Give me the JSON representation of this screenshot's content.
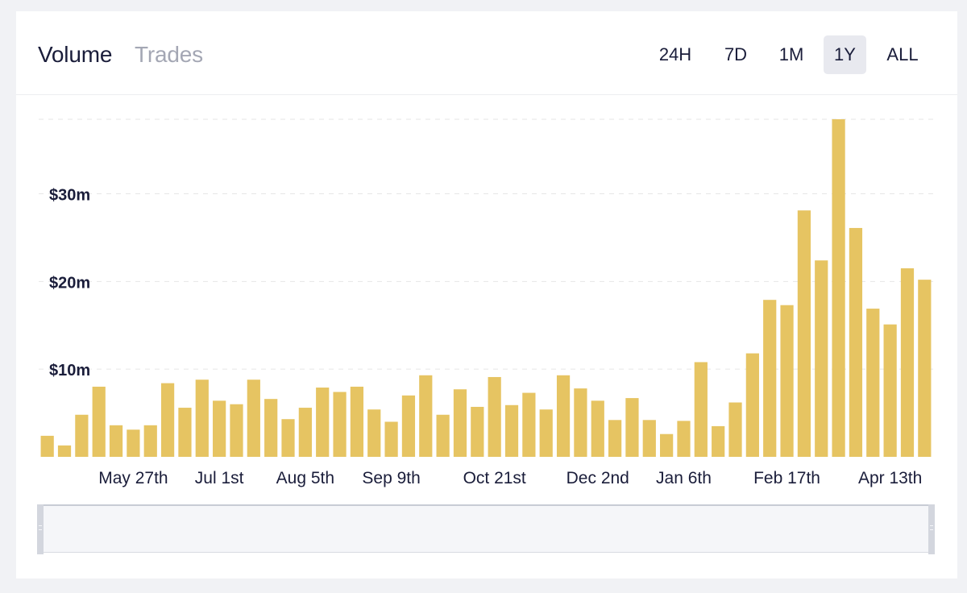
{
  "header": {
    "metric_tabs": [
      {
        "label": "Volume",
        "active": true
      },
      {
        "label": "Trades",
        "active": false
      }
    ],
    "ranges": [
      {
        "label": "24H",
        "selected": false
      },
      {
        "label": "7D",
        "selected": false
      },
      {
        "label": "1M",
        "selected": false
      },
      {
        "label": "1Y",
        "selected": true
      },
      {
        "label": "ALL",
        "selected": false
      }
    ]
  },
  "colors": {
    "bar": "#e6c462",
    "text": "#1a1d3a",
    "muted": "#a4a7b4",
    "grid": "#e6e6e6"
  },
  "chart_data": {
    "type": "bar",
    "ylim": [
      0,
      38.5
    ],
    "yticks": [
      {
        "value": 10,
        "label": "$10m"
      },
      {
        "value": 20,
        "label": "$20m"
      },
      {
        "value": 30,
        "label": "$30m"
      }
    ],
    "xtick_labels": [
      {
        "label": "May 27th",
        "index": 5
      },
      {
        "label": "Jul 1st",
        "index": 10
      },
      {
        "label": "Aug 5th",
        "index": 15
      },
      {
        "label": "Sep 9th",
        "index": 20
      },
      {
        "label": "Oct 21st",
        "index": 26
      },
      {
        "label": "Dec 2nd",
        "index": 32
      },
      {
        "label": "Jan 6th",
        "index": 37
      },
      {
        "label": "Feb 17th",
        "index": 43
      },
      {
        "label": "Apr 13th",
        "index": 49
      }
    ],
    "values": [
      2.4,
      1.3,
      4.8,
      8.0,
      3.6,
      3.1,
      3.6,
      8.4,
      5.6,
      8.8,
      6.4,
      6.0,
      8.8,
      6.6,
      4.3,
      5.6,
      7.9,
      7.4,
      8.0,
      5.4,
      4.0,
      7.0,
      9.3,
      4.8,
      7.7,
      5.7,
      9.1,
      5.9,
      7.3,
      5.4,
      9.3,
      7.8,
      6.4,
      4.2,
      6.7,
      4.2,
      2.6,
      4.1,
      10.8,
      3.5,
      6.2,
      11.8,
      17.9,
      17.3,
      28.1,
      22.4,
      38.5,
      26.1,
      16.9,
      15.1,
      21.5,
      20.2
    ]
  }
}
